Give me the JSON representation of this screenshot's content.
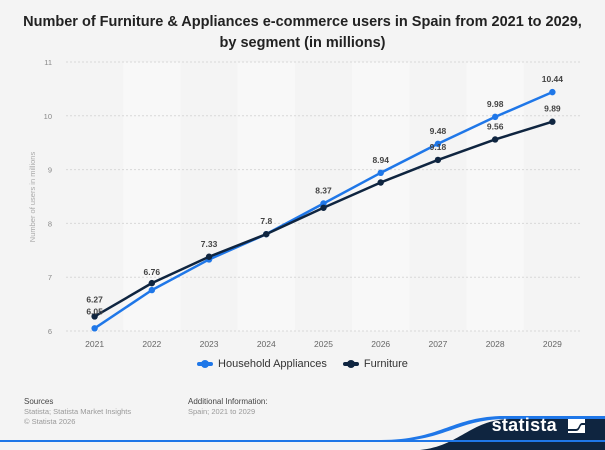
{
  "title_line1": "Number of Furniture & Appliances e-commerce users in Spain from 2021 to 2029,",
  "title_line2": "by segment (in millions)",
  "chart_data": {
    "type": "line",
    "title": "Number of Furniture & Appliances e-commerce users in Spain from 2021 to 2029, by segment (in millions)",
    "xlabel": "",
    "ylabel": "Number of users in millions",
    "categories": [
      "2021",
      "2022",
      "2023",
      "2024",
      "2025",
      "2026",
      "2027",
      "2028",
      "2029"
    ],
    "ylim": [
      6,
      11
    ],
    "yticks": [
      6,
      7,
      8,
      9,
      10,
      11
    ],
    "grid": true,
    "legend_position": "bottom-center",
    "series": [
      {
        "name": "Household Appliances",
        "color": "#1f77e8",
        "values": [
          6.05,
          6.76,
          7.33,
          7.8,
          8.37,
          8.94,
          9.48,
          9.98,
          10.44
        ],
        "labels": [
          "6.05",
          "6.76",
          "7.33",
          "7.8",
          "8.37",
          "8.94",
          "9.48",
          "9.98",
          "10.44"
        ]
      },
      {
        "name": "Furniture",
        "color": "#0f2540",
        "values": [
          6.27,
          6.89,
          7.38,
          7.8,
          8.29,
          8.76,
          9.18,
          9.56,
          9.89
        ],
        "labels": [
          "6.27",
          "",
          "",
          "",
          "",
          "",
          "9.18",
          "9.56",
          "9.89"
        ]
      }
    ]
  },
  "legend": [
    {
      "label": "Household Appliances",
      "color": "#1f77e8"
    },
    {
      "label": "Furniture",
      "color": "#0f2540"
    }
  ],
  "footer": {
    "sources_head": "Sources",
    "sources_line1": "Statista; Statista Market Insights",
    "sources_line2": "© Statista 2026",
    "info_head": "Additional Information:",
    "info_line1": "Spain; 2021 to 2029"
  },
  "brand": {
    "name": "statista",
    "navy": "#0f2540",
    "blue": "#1f77e8"
  }
}
